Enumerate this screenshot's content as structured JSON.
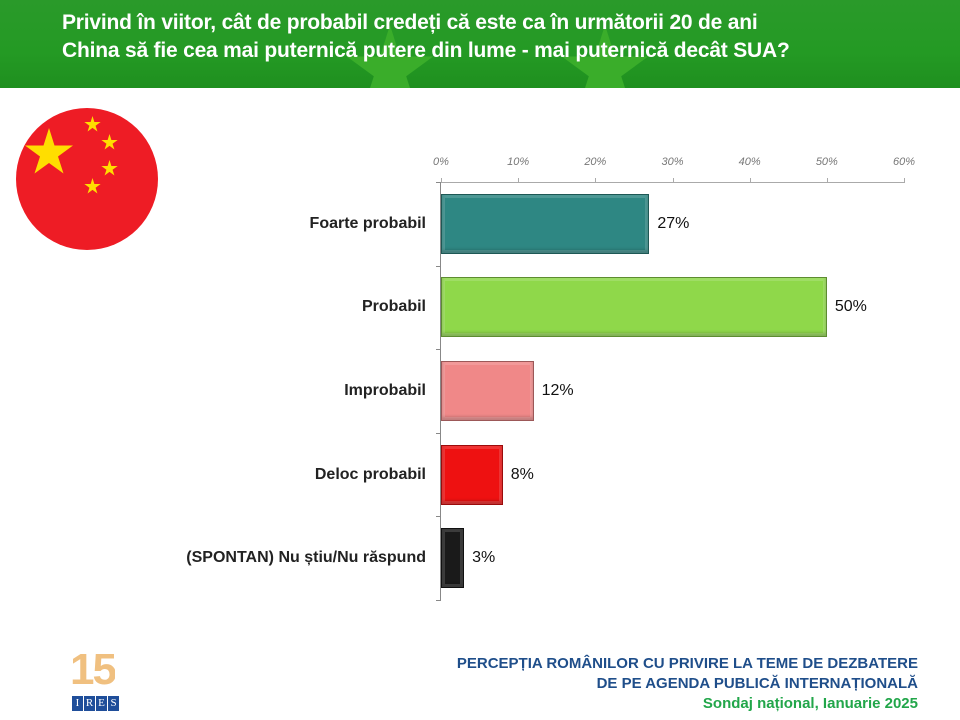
{
  "header": {
    "title_line1": "Privind în viitor, cât de probabil credeți că este ca în următorii 20 de ani",
    "title_line2": "China să fie cea mai puternică putere din lume - mai puternică decât SUA?"
  },
  "chart_data": {
    "type": "bar",
    "orientation": "horizontal",
    "categories": [
      "Foarte probabil",
      "Probabil",
      "Improbabil",
      "Deloc probabil",
      "(SPONTAN) Nu știu/Nu răspund"
    ],
    "values": [
      27,
      50,
      12,
      8,
      3
    ],
    "value_labels": [
      "27%",
      "50%",
      "12%",
      "8%",
      "3%"
    ],
    "colors": [
      "#2e8783",
      "#8fd84a",
      "#f08888",
      "#ee1111",
      "#1a1a1a"
    ],
    "xlim": [
      0,
      60
    ],
    "ticks": [
      "0%",
      "10%",
      "20%",
      "30%",
      "40%",
      "50%",
      "60%"
    ],
    "tick_values": [
      0,
      10,
      20,
      30,
      40,
      50,
      60
    ],
    "xaxis_position": "top",
    "grid": false
  },
  "footer": {
    "line1": "PERCEPȚIA ROMÂNILOR CU PRIVIRE LA TEME DE DEZBATERE",
    "line2": "DE PE AGENDA PUBLICĂ INTERNAȚIONALĂ",
    "line3": "Sondaj național, Ianuarie 2025"
  },
  "logo": {
    "number": "15",
    "letters": [
      "I",
      "R",
      "E",
      "S"
    ]
  }
}
